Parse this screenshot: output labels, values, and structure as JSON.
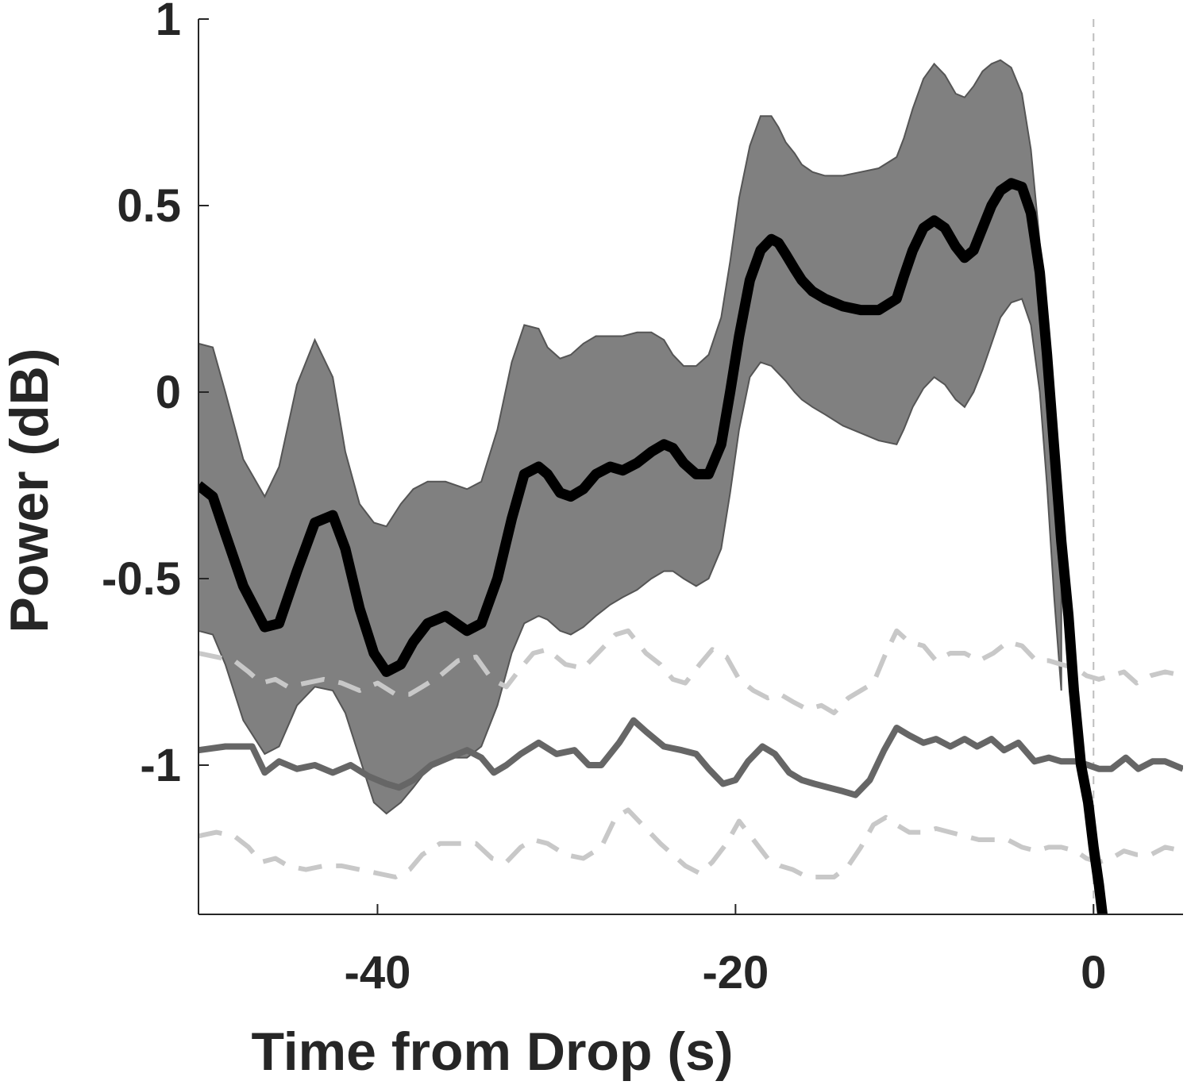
{
  "chart_data": {
    "type": "line",
    "title": "",
    "xlabel": "Time from Drop (s)",
    "ylabel": "Power (dB)",
    "xlim": [
      -50,
      5
    ],
    "ylim": [
      -1.4,
      1
    ],
    "xticks": [
      -40,
      -20,
      0
    ],
    "xtick_labels": [
      "-40",
      "-20",
      "0"
    ],
    "yticks": [
      1,
      0.5,
      0,
      -0.5,
      -1
    ],
    "ytick_labels": [
      "1",
      "0.5",
      "0",
      "-0.5",
      "-1"
    ],
    "grid": false,
    "reference_line_x": 0,
    "series": [
      {
        "role": "mean",
        "color": "#000000",
        "x": [
          -50,
          -49.2,
          -48.5,
          -47.5,
          -46.3,
          -45.5,
          -44.5,
          -43.5,
          -42.5,
          -41.8,
          -41,
          -40.2,
          -39.5,
          -38.7,
          -38,
          -37.2,
          -36.2,
          -35,
          -34.2,
          -33.3,
          -32.5,
          -31.8,
          -31,
          -30.5,
          -29.8,
          -29.2,
          -28.5,
          -27.8,
          -27,
          -26.3,
          -25.5,
          -24.7,
          -24,
          -23.5,
          -22.9,
          -22.2,
          -21.5,
          -20.8,
          -20.3,
          -19.8,
          -19.2,
          -18.6,
          -18,
          -17.6,
          -17.2,
          -16.7,
          -16.3,
          -15.7,
          -15,
          -14,
          -13,
          -12,
          -11,
          -10.6,
          -10.1,
          -9.5,
          -8.9,
          -8.3,
          -7.7,
          -7.2,
          -6.7,
          -6.2,
          -5.7,
          -5.2,
          -4.6,
          -4,
          -3.5,
          -3,
          -2.6,
          -2.2,
          -1.8,
          -1.4,
          -1.1,
          -0.7,
          -0.3,
          0,
          0.3,
          0.5,
          0.8
        ],
        "y": [
          -0.25,
          -0.28,
          -0.38,
          -0.52,
          -0.63,
          -0.62,
          -0.48,
          -0.35,
          -0.33,
          -0.42,
          -0.58,
          -0.7,
          -0.75,
          -0.73,
          -0.67,
          -0.62,
          -0.6,
          -0.64,
          -0.62,
          -0.5,
          -0.34,
          -0.22,
          -0.2,
          -0.22,
          -0.27,
          -0.28,
          -0.26,
          -0.22,
          -0.2,
          -0.21,
          -0.19,
          -0.16,
          -0.14,
          -0.15,
          -0.19,
          -0.22,
          -0.22,
          -0.14,
          0.0,
          0.15,
          0.3,
          0.38,
          0.41,
          0.4,
          0.37,
          0.33,
          0.3,
          0.27,
          0.25,
          0.23,
          0.22,
          0.22,
          0.25,
          0.31,
          0.38,
          0.44,
          0.46,
          0.44,
          0.39,
          0.36,
          0.38,
          0.44,
          0.5,
          0.54,
          0.56,
          0.55,
          0.48,
          0.32,
          0.1,
          -0.15,
          -0.4,
          -0.6,
          -0.8,
          -1.0,
          -1.1,
          -1.22,
          -1.32,
          -1.4,
          -1.5
        ]
      },
      {
        "role": "confidence-band",
        "color": "#808080",
        "x": [
          -50,
          -49.2,
          -48.5,
          -47.5,
          -46.3,
          -45.5,
          -44.5,
          -43.5,
          -42.5,
          -41.8,
          -41,
          -40.2,
          -39.5,
          -38.7,
          -38,
          -37.2,
          -36.2,
          -35,
          -34.2,
          -33.3,
          -32.5,
          -31.8,
          -31,
          -30.5,
          -29.8,
          -29.2,
          -28.5,
          -27.8,
          -27,
          -26.3,
          -25.5,
          -24.7,
          -24,
          -23.5,
          -22.9,
          -22.2,
          -21.5,
          -20.8,
          -20.3,
          -19.8,
          -19.2,
          -18.6,
          -18,
          -17.6,
          -17.2,
          -16.7,
          -16.3,
          -15.7,
          -15,
          -14,
          -13,
          -12,
          -11,
          -10.6,
          -10.1,
          -9.5,
          -8.9,
          -8.3,
          -7.7,
          -7.2,
          -6.7,
          -6.2,
          -5.7,
          -5.2,
          -4.6,
          -4,
          -3.5,
          -3,
          -2.6,
          -2.2,
          -1.8
        ],
        "upper": [
          0.13,
          0.12,
          0.0,
          -0.18,
          -0.28,
          -0.2,
          0.02,
          0.14,
          0.04,
          -0.16,
          -0.3,
          -0.35,
          -0.36,
          -0.3,
          -0.26,
          -0.24,
          -0.24,
          -0.26,
          -0.24,
          -0.1,
          0.08,
          0.18,
          0.17,
          0.12,
          0.09,
          0.1,
          0.13,
          0.15,
          0.15,
          0.15,
          0.16,
          0.16,
          0.14,
          0.1,
          0.07,
          0.07,
          0.1,
          0.2,
          0.35,
          0.52,
          0.66,
          0.74,
          0.74,
          0.71,
          0.67,
          0.64,
          0.61,
          0.59,
          0.58,
          0.58,
          0.59,
          0.6,
          0.63,
          0.68,
          0.76,
          0.84,
          0.88,
          0.85,
          0.8,
          0.79,
          0.82,
          0.86,
          0.88,
          0.89,
          0.87,
          0.8,
          0.65,
          0.4,
          0.1,
          -0.2,
          -0.5
        ],
        "lower": [
          -0.64,
          -0.65,
          -0.73,
          -0.88,
          -0.97,
          -0.95,
          -0.84,
          -0.79,
          -0.8,
          -0.86,
          -0.98,
          -1.1,
          -1.13,
          -1.1,
          -1.06,
          -1.01,
          -0.98,
          -0.98,
          -0.95,
          -0.84,
          -0.7,
          -0.62,
          -0.6,
          -0.61,
          -0.64,
          -0.65,
          -0.63,
          -0.6,
          -0.57,
          -0.55,
          -0.53,
          -0.5,
          -0.48,
          -0.48,
          -0.5,
          -0.52,
          -0.5,
          -0.42,
          -0.27,
          -0.1,
          0.04,
          0.08,
          0.07,
          0.05,
          0.03,
          0.0,
          -0.02,
          -0.04,
          -0.06,
          -0.09,
          -0.11,
          -0.13,
          -0.14,
          -0.1,
          -0.04,
          0.01,
          0.04,
          0.02,
          -0.02,
          -0.04,
          0.0,
          0.06,
          0.13,
          0.2,
          0.24,
          0.25,
          0.18,
          0.0,
          -0.25,
          -0.55,
          -0.8
        ]
      },
      {
        "role": "shuffled-mean",
        "color": "#666666",
        "x": [
          -50,
          -48.5,
          -47,
          -46.3,
          -45.5,
          -44.5,
          -43.5,
          -42.5,
          -41.5,
          -40.5,
          -39.5,
          -38.8,
          -38,
          -37,
          -36,
          -35,
          -34.2,
          -33.5,
          -32.8,
          -32,
          -31,
          -30,
          -29,
          -28.2,
          -27.5,
          -26.5,
          -25.7,
          -25,
          -24,
          -23,
          -22.2,
          -21.5,
          -20.7,
          -20,
          -19.3,
          -18.5,
          -17.8,
          -17,
          -16.3,
          -15.6,
          -14.8,
          -14,
          -13.3,
          -12.5,
          -11.7,
          -11,
          -10.3,
          -9.5,
          -8.8,
          -8,
          -7.2,
          -6.5,
          -5.7,
          -5,
          -4.2,
          -3.3,
          -2.5,
          -1.8,
          -1,
          -0.3,
          0.3,
          1,
          1.8,
          2.5,
          3.3,
          4,
          5
        ],
        "y": [
          -0.96,
          -0.95,
          -0.95,
          -1.02,
          -0.99,
          -1.01,
          -1.0,
          -1.02,
          -1.0,
          -1.03,
          -1.05,
          -1.06,
          -1.04,
          -1.0,
          -0.98,
          -0.96,
          -0.98,
          -1.02,
          -1.0,
          -0.97,
          -0.94,
          -0.97,
          -0.96,
          -1.0,
          -1.0,
          -0.94,
          -0.88,
          -0.91,
          -0.95,
          -0.96,
          -0.97,
          -1.01,
          -1.05,
          -1.04,
          -0.99,
          -0.95,
          -0.97,
          -1.02,
          -1.04,
          -1.05,
          -1.06,
          -1.07,
          -1.08,
          -1.04,
          -0.96,
          -0.9,
          -0.92,
          -0.94,
          -0.93,
          -0.95,
          -0.93,
          -0.95,
          -0.93,
          -0.96,
          -0.94,
          -0.99,
          -0.98,
          -0.99,
          -0.99,
          -1.0,
          -1.01,
          -1.01,
          -0.98,
          -1.01,
          -0.99,
          -0.99,
          -1.01
        ]
      },
      {
        "role": "shuffled-upper",
        "color": "#c8c8c8",
        "dashed": true,
        "x": [
          -50,
          -49,
          -48,
          -47.2,
          -46.5,
          -45.7,
          -45,
          -44,
          -43,
          -42,
          -41,
          -40,
          -39,
          -38.2,
          -37.5,
          -36.5,
          -35.5,
          -34.5,
          -33.6,
          -32.8,
          -32,
          -31.3,
          -30.5,
          -29.5,
          -28.5,
          -27.5,
          -26.7,
          -26,
          -25,
          -24.2,
          -23.5,
          -22.8,
          -22,
          -21.3,
          -20.5,
          -19.8,
          -19,
          -18.2,
          -17.5,
          -16.8,
          -16,
          -15.2,
          -14.5,
          -13.7,
          -13,
          -12.3,
          -11.6,
          -11,
          -10.3,
          -9.5,
          -8.8,
          -8,
          -7.2,
          -6.4,
          -5.6,
          -4.8,
          -4,
          -3.2,
          -2.5,
          -1.8,
          -1,
          -0.4,
          0.3,
          1,
          1.7,
          2.4,
          3.2,
          4,
          5
        ],
        "y": [
          -0.7,
          -0.71,
          -0.72,
          -0.75,
          -0.78,
          -0.77,
          -0.79,
          -0.78,
          -0.77,
          -0.78,
          -0.8,
          -0.78,
          -0.81,
          -0.81,
          -0.79,
          -0.76,
          -0.72,
          -0.71,
          -0.77,
          -0.79,
          -0.74,
          -0.7,
          -0.69,
          -0.73,
          -0.74,
          -0.69,
          -0.65,
          -0.64,
          -0.7,
          -0.73,
          -0.77,
          -0.78,
          -0.73,
          -0.69,
          -0.71,
          -0.77,
          -0.8,
          -0.82,
          -0.81,
          -0.83,
          -0.85,
          -0.84,
          -0.86,
          -0.82,
          -0.8,
          -0.78,
          -0.7,
          -0.64,
          -0.67,
          -0.68,
          -0.72,
          -0.7,
          -0.7,
          -0.72,
          -0.7,
          -0.67,
          -0.68,
          -0.72,
          -0.72,
          -0.73,
          -0.74,
          -0.76,
          -0.77,
          -0.76,
          -0.75,
          -0.78,
          -0.76,
          -0.75,
          -0.76
        ]
      },
      {
        "role": "shuffled-lower",
        "color": "#c8c8c8",
        "dashed": true,
        "x": [
          -50,
          -49,
          -48,
          -47.2,
          -46.5,
          -45.7,
          -45,
          -44,
          -43,
          -42,
          -41,
          -40,
          -39,
          -38.2,
          -37.5,
          -36.5,
          -35.5,
          -34.5,
          -33.6,
          -32.8,
          -32,
          -31.3,
          -30.5,
          -29.5,
          -28.5,
          -27.5,
          -26.7,
          -26,
          -25,
          -24.2,
          -23.5,
          -22.8,
          -22,
          -21.3,
          -20.5,
          -19.8,
          -19,
          -18.2,
          -17.5,
          -16.8,
          -16,
          -15.2,
          -14.5,
          -13.7,
          -13,
          -12.3,
          -11.6,
          -11,
          -10.3,
          -9.5,
          -8.8,
          -8,
          -7.2,
          -6.4,
          -5.6,
          -4.8,
          -4,
          -3.2,
          -2.5,
          -1.8,
          -1,
          -0.4,
          0.3,
          1,
          1.7,
          2.4,
          3.2,
          4,
          5
        ],
        "y": [
          -1.19,
          -1.18,
          -1.19,
          -1.22,
          -1.26,
          -1.25,
          -1.27,
          -1.28,
          -1.27,
          -1.27,
          -1.28,
          -1.29,
          -1.3,
          -1.28,
          -1.24,
          -1.21,
          -1.21,
          -1.21,
          -1.25,
          -1.26,
          -1.22,
          -1.2,
          -1.21,
          -1.24,
          -1.25,
          -1.22,
          -1.14,
          -1.12,
          -1.17,
          -1.21,
          -1.24,
          -1.27,
          -1.29,
          -1.26,
          -1.21,
          -1.15,
          -1.2,
          -1.25,
          -1.27,
          -1.28,
          -1.3,
          -1.3,
          -1.3,
          -1.27,
          -1.22,
          -1.16,
          -1.14,
          -1.16,
          -1.18,
          -1.18,
          -1.17,
          -1.18,
          -1.19,
          -1.2,
          -1.2,
          -1.2,
          -1.22,
          -1.23,
          -1.22,
          -1.22,
          -1.23,
          -1.25,
          -1.26,
          -1.25,
          -1.23,
          -1.24,
          -1.24,
          -1.22,
          -1.23
        ]
      }
    ]
  }
}
